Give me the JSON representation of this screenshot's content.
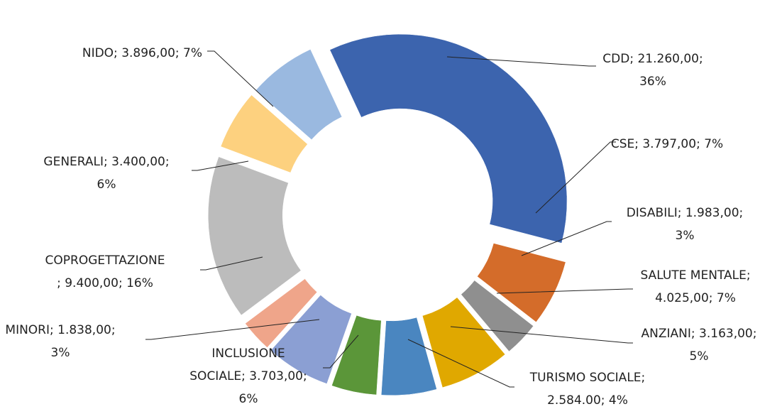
{
  "chart_data": {
    "type": "doughnut",
    "values": [
      21260,
      3797,
      1983,
      4025,
      3163,
      2584,
      3703,
      1838,
      9400,
      3400,
      3896
    ],
    "value_labels": [
      [
        "CDD; 21.260,00;",
        "36%"
      ],
      [
        "CSE; 3.797,00; 7%"
      ],
      [
        "DISABILI; 1.983,00;",
        "3%"
      ],
      [
        "SALUTE MENTALE;",
        "4.025,00; 7%"
      ],
      [
        "ANZIANI; 3.163,00;",
        "5%"
      ],
      [
        "TURISMO SOCIALE;",
        "2.584.00; 4%"
      ],
      [
        "INCLUSIONE",
        "SOCIALE; 3.703,00;",
        "6%"
      ],
      [
        "MINORI; 1.838,00;",
        "3%"
      ],
      [
        "COPROGETTAZIONE",
        "; 9.400,00; 16%"
      ],
      [
        "GENERALI; 3.400,00;",
        "6%"
      ],
      [
        "NIDO; 3.896,00; 7%"
      ]
    ],
    "colors": [
      "#3c64ae",
      "#d46c2a",
      "#8f8f8f",
      "#e0a800",
      "#4a86c0",
      "#5b9639",
      "#8b9fd3",
      "#efa58a",
      "#bcbcbc",
      "#fdd17f",
      "#9ab9e0"
    ]
  }
}
